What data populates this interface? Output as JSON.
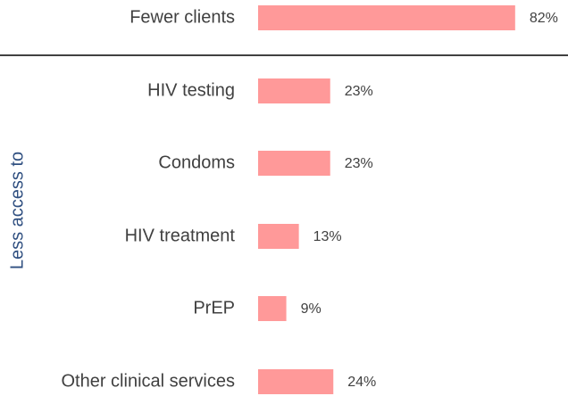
{
  "chart_data": {
    "type": "bar",
    "orientation": "horizontal",
    "categories": [
      "Fewer clients",
      "HIV testing",
      "Condoms",
      "HIV treatment",
      "PrEP",
      "Other clinical services"
    ],
    "values": [
      82,
      23,
      23,
      13,
      9,
      24
    ],
    "value_labels": [
      "82%",
      "23%",
      "23%",
      "13%",
      "9%",
      "24%"
    ],
    "color": "#ff9999",
    "group_label": "Less access to"
  }
}
